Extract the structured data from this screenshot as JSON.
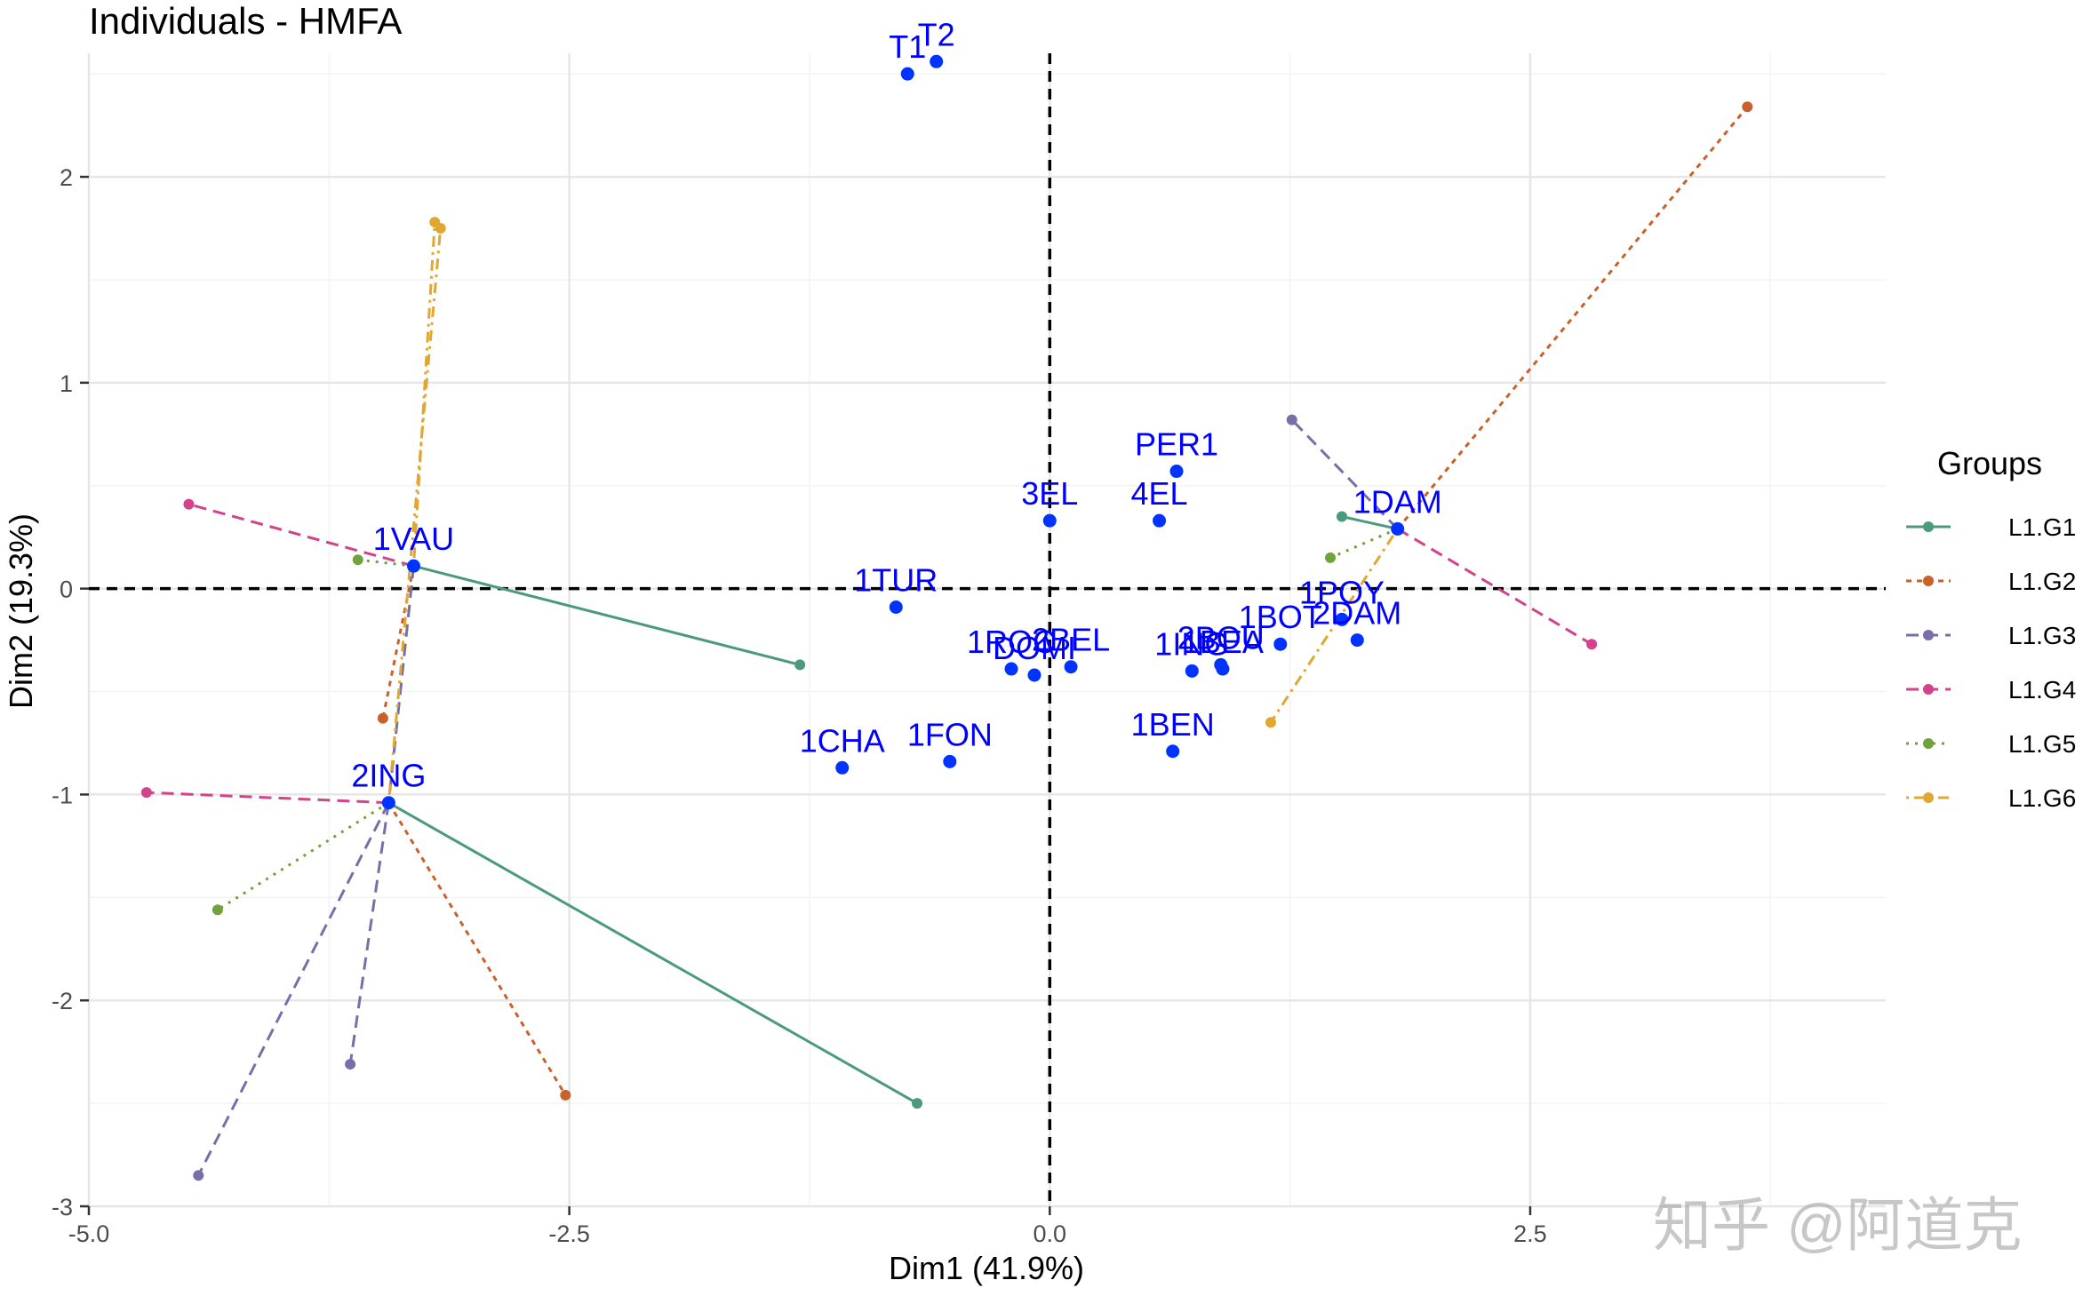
{
  "title": "Individuals - HMFA",
  "watermark": "知乎 @阿道克",
  "chart_data": {
    "type": "scatter",
    "title": "Individuals - HMFA",
    "xlabel": "Dim1 (41.9%)",
    "ylabel": "Dim2 (19.3%)",
    "xlim": [
      -5.0,
      4.35
    ],
    "ylim": [
      -3.0,
      2.6
    ],
    "x_ticks": [
      -5.0,
      -2.5,
      0.0,
      2.5
    ],
    "x_tick_labels": [
      "-5.0",
      "-2.5",
      "0.0",
      "2.5"
    ],
    "y_ticks": [
      -3,
      -2,
      -1,
      0,
      1,
      2
    ],
    "y_tick_labels": [
      "-3",
      "-2",
      "-1",
      "0",
      "1",
      "2"
    ],
    "grid": true,
    "reference_lines": {
      "x": 0,
      "y": 0,
      "style": "dashed",
      "color": "#000000"
    },
    "point_color": "#0033ff",
    "individuals": [
      {
        "label": "T1",
        "x": -0.74,
        "y": 2.5
      },
      {
        "label": "T2",
        "x": -0.59,
        "y": 2.56
      },
      {
        "label": "PER1",
        "x": 0.66,
        "y": 0.57
      },
      {
        "label": "3EL",
        "x": 0.0,
        "y": 0.33
      },
      {
        "label": "4EL",
        "x": 0.57,
        "y": 0.33
      },
      {
        "label": "1DAM",
        "x": 1.81,
        "y": 0.29
      },
      {
        "label": "1VAU",
        "x": -3.31,
        "y": 0.11
      },
      {
        "label": "1TUR",
        "x": -0.8,
        "y": -0.09
      },
      {
        "label": "1POY",
        "x": 1.52,
        "y": -0.15
      },
      {
        "label": "2DAM",
        "x": 1.6,
        "y": -0.25
      },
      {
        "label": "1BOT",
        "x": 1.2,
        "y": -0.27
      },
      {
        "label": "1ROC",
        "x": -0.2,
        "y": -0.39
      },
      {
        "label": "2BEL",
        "x": 0.11,
        "y": -0.38
      },
      {
        "label": "DOMI",
        "x": -0.08,
        "y": -0.42
      },
      {
        "label": "1ING",
        "x": 0.74,
        "y": -0.4
      },
      {
        "label": "2BOU",
        "x": 0.89,
        "y": -0.37
      },
      {
        "label": "1BEA",
        "x": 0.9,
        "y": -0.39
      },
      {
        "label": "1CHA",
        "x": -1.08,
        "y": -0.87
      },
      {
        "label": "1FON",
        "x": -0.52,
        "y": -0.84
      },
      {
        "label": "1BEN",
        "x": 0.64,
        "y": -0.79
      },
      {
        "label": "2ING",
        "x": -3.44,
        "y": -1.04
      }
    ],
    "groups_legend_title": "Groups",
    "series": [
      {
        "name": "L1.G1",
        "color": "#4a9a7b",
        "dash": "solid",
        "links": [
          {
            "from": [
              -3.31,
              0.11
            ],
            "to": [
              -1.3,
              -0.37
            ]
          },
          {
            "from": [
              -3.44,
              -1.04
            ],
            "to": [
              -0.69,
              -2.5
            ]
          },
          {
            "from": [
              1.81,
              0.29
            ],
            "to": [
              1.52,
              0.35
            ]
          }
        ]
      },
      {
        "name": "L1.G2",
        "color": "#c8622a",
        "dash": "short-dash",
        "links": [
          {
            "from": [
              -3.31,
              0.11
            ],
            "to": [
              -3.47,
              -0.63
            ]
          },
          {
            "from": [
              -3.44,
              -1.04
            ],
            "to": [
              -2.52,
              -2.46
            ]
          },
          {
            "from": [
              1.81,
              0.29
            ],
            "to": [
              3.63,
              2.34
            ]
          }
        ]
      },
      {
        "name": "L1.G3",
        "color": "#7a6ea8",
        "dash": "long-dash",
        "links": [
          {
            "from": [
              -3.31,
              0.11
            ],
            "to": [
              -3.44,
              -1.04
            ]
          },
          {
            "from": [
              -3.44,
              -1.04
            ],
            "to": [
              -4.43,
              -2.85
            ]
          },
          {
            "from": [
              -3.44,
              -1.04
            ],
            "to": [
              -3.64,
              -2.31
            ]
          },
          {
            "from": [
              1.81,
              0.29
            ],
            "to": [
              1.26,
              0.82
            ]
          }
        ]
      },
      {
        "name": "L1.G4",
        "color": "#d3428a",
        "dash": "long-dash",
        "links": [
          {
            "from": [
              -3.31,
              0.11
            ],
            "to": [
              -4.48,
              0.41
            ]
          },
          {
            "from": [
              -3.44,
              -1.04
            ],
            "to": [
              -4.7,
              -0.99
            ]
          },
          {
            "from": [
              1.81,
              0.29
            ],
            "to": [
              2.82,
              -0.27
            ]
          }
        ]
      },
      {
        "name": "L1.G5",
        "color": "#72a23c",
        "dash": "dotted",
        "links": [
          {
            "from": [
              -3.31,
              0.11
            ],
            "to": [
              -3.6,
              0.14
            ]
          },
          {
            "from": [
              -3.44,
              -1.04
            ],
            "to": [
              -4.33,
              -1.56
            ]
          },
          {
            "from": [
              1.81,
              0.29
            ],
            "to": [
              1.46,
              0.15
            ]
          }
        ]
      },
      {
        "name": "L1.G6",
        "color": "#e0a830",
        "dash": "dot-dash",
        "links": [
          {
            "from": [
              -3.31,
              0.11
            ],
            "to": [
              -3.2,
              1.78
            ]
          },
          {
            "from": [
              -3.44,
              -1.04
            ],
            "to": [
              -3.17,
              1.75
            ]
          },
          {
            "from": [
              1.81,
              0.29
            ],
            "to": [
              1.15,
              -0.65
            ]
          }
        ]
      }
    ]
  }
}
